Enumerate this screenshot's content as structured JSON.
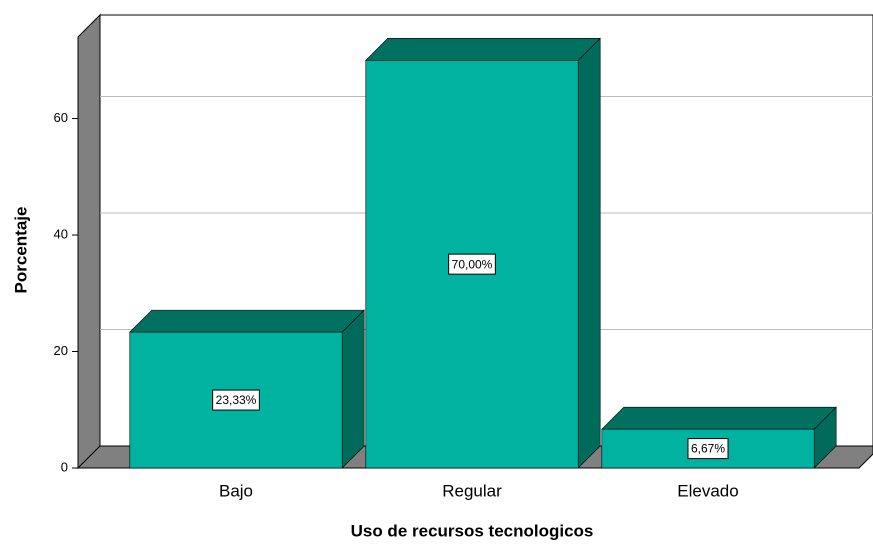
{
  "chart_data": {
    "type": "bar3d",
    "x_label": "Uso de recursos tecnologicos",
    "y_label": "Porcentaje",
    "categories": [
      "Bajo",
      "Regular",
      "Elevado"
    ],
    "values": [
      23.33,
      70.0,
      6.67
    ],
    "value_labels": [
      "23,33%",
      "70,00%",
      "6,67%"
    ],
    "color": "#00b2a0",
    "ylim": [
      0,
      74
    ],
    "yticks": [
      0,
      20,
      40,
      60
    ],
    "grid": true
  }
}
